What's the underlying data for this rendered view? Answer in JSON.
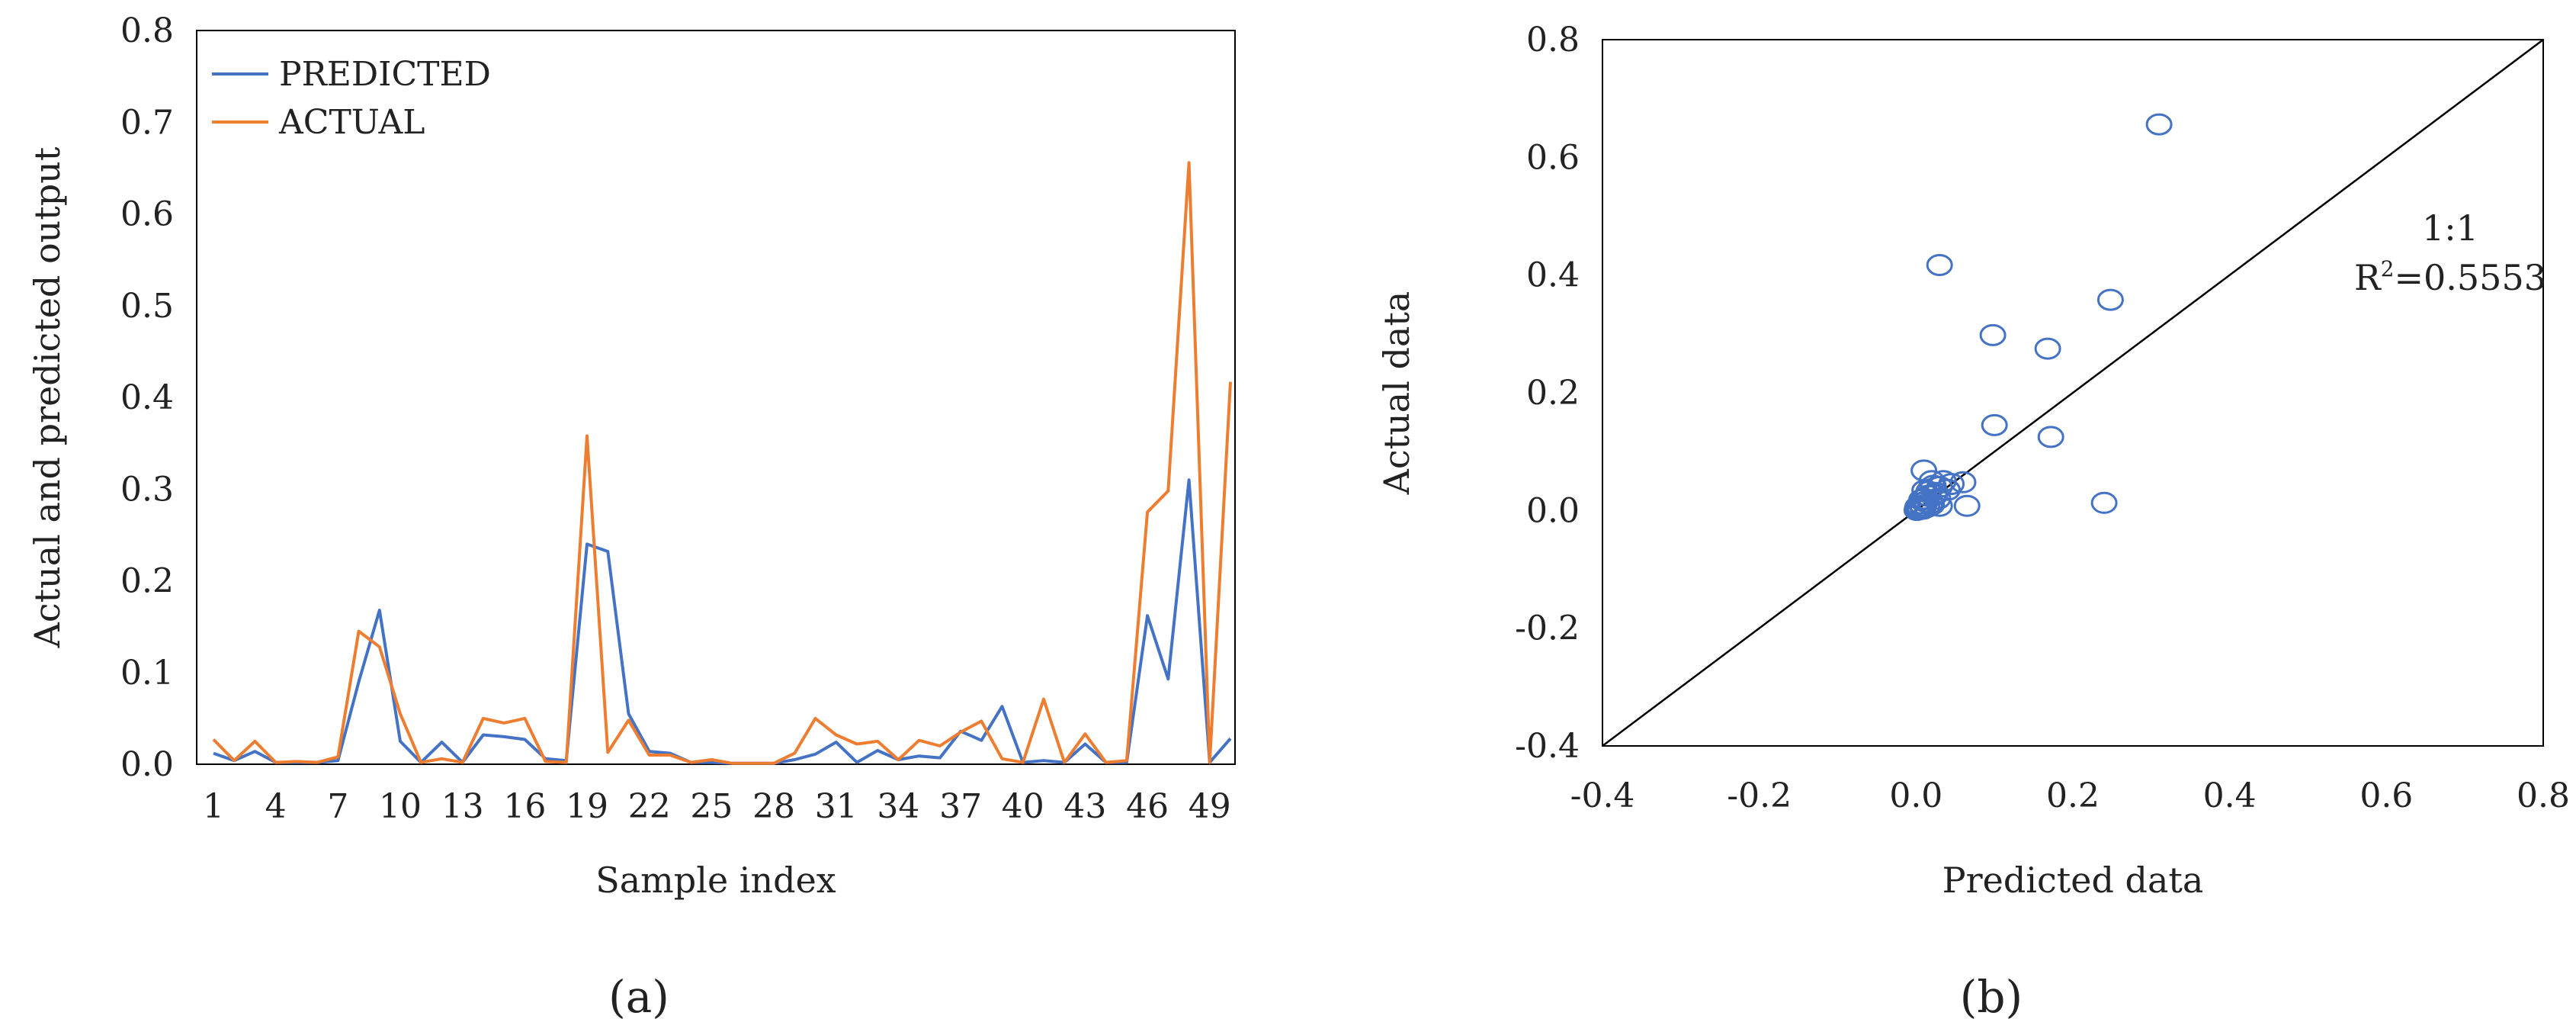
{
  "colors": {
    "predicted": "#4472C4",
    "actual": "#ED7D31",
    "axis": "#000000",
    "marker": "#4472C4"
  },
  "chart_data": [
    {
      "type": "line",
      "panel_label": "(a)",
      "title": "",
      "xlabel": "Sample index",
      "ylabel": "Actual and predicted output",
      "ylim": [
        0,
        0.8
      ],
      "xlim": [
        1,
        50
      ],
      "grid": false,
      "legend_position": "top-left",
      "x_tick_labels": [
        "1",
        "4",
        "7",
        "10",
        "13",
        "16",
        "19",
        "22",
        "25",
        "28",
        "31",
        "34",
        "37",
        "40",
        "43",
        "46",
        "49"
      ],
      "y_tick_labels": [
        "0.0",
        "0.1",
        "0.2",
        "0.3",
        "0.4",
        "0.5",
        "0.6",
        "0.7",
        "0.8"
      ],
      "x": [
        1,
        2,
        3,
        4,
        5,
        6,
        7,
        8,
        9,
        10,
        11,
        12,
        13,
        14,
        15,
        16,
        17,
        18,
        19,
        20,
        21,
        22,
        23,
        24,
        25,
        26,
        27,
        28,
        29,
        30,
        31,
        32,
        33,
        34,
        35,
        36,
        37,
        38,
        39,
        40,
        41,
        42,
        43,
        44,
        45,
        46,
        47,
        48,
        49,
        50
      ],
      "series": [
        {
          "name": "PREDICTED",
          "values": [
            0.012,
            0.004,
            0.014,
            0.002,
            0.002,
            0.002,
            0.004,
            0.09,
            0.168,
            0.025,
            0.002,
            0.024,
            0.002,
            0.032,
            0.03,
            0.027,
            0.006,
            0.004,
            0.24,
            0.232,
            0.055,
            0.014,
            0.012,
            0.002,
            0.002,
            0.001,
            0.001,
            0.001,
            0.005,
            0.011,
            0.024,
            0.002,
            0.015,
            0.005,
            0.009,
            0.007,
            0.036,
            0.026,
            0.063,
            0.002,
            0.004,
            0.002,
            0.022,
            0.002,
            0.002,
            0.162,
            0.093,
            0.31,
            0.002,
            0.028
          ]
        },
        {
          "name": "ACTUAL",
          "values": [
            0.027,
            0.004,
            0.025,
            0.002,
            0.003,
            0.002,
            0.008,
            0.145,
            0.128,
            0.055,
            0.002,
            0.006,
            0.002,
            0.05,
            0.045,
            0.05,
            0.003,
            0.002,
            0.358,
            0.013,
            0.048,
            0.01,
            0.01,
            0.002,
            0.005,
            0.001,
            0.001,
            0.001,
            0.012,
            0.05,
            0.032,
            0.022,
            0.025,
            0.005,
            0.026,
            0.02,
            0.035,
            0.047,
            0.006,
            0.002,
            0.071,
            0.002,
            0.033,
            0.002,
            0.004,
            0.275,
            0.298,
            0.656,
            0.002,
            0.417
          ]
        }
      ]
    },
    {
      "type": "scatter",
      "panel_label": "(b)",
      "title": "",
      "xlabel": "Predicted data",
      "ylabel": "Actual data",
      "xlim": [
        -0.4,
        0.8
      ],
      "ylim": [
        -0.4,
        0.8
      ],
      "grid": false,
      "x_tick_labels": [
        "-0.4",
        "-0.2",
        "0.0",
        "0.2",
        "0.4",
        "0.6",
        "0.8"
      ],
      "y_tick_labels": [
        "-0.4",
        "-0.2",
        "0.0",
        "0.2",
        "0.4",
        "0.6",
        "0.8"
      ],
      "reference_line": {
        "label": "1:1",
        "from": [
          -0.4,
          -0.4
        ],
        "to": [
          0.8,
          0.8
        ]
      },
      "annotation_ratio": "1:1",
      "annotation_r2_prefix": "R",
      "annotation_r2_sup": "2",
      "annotation_r2_value": "=0.5553",
      "points": [
        [
          0.31,
          0.656
        ],
        [
          0.03,
          0.417
        ],
        [
          0.248,
          0.358
        ],
        [
          0.098,
          0.298
        ],
        [
          0.168,
          0.275
        ],
        [
          0.1,
          0.145
        ],
        [
          0.172,
          0.125
        ],
        [
          0.24,
          0.013
        ],
        [
          0.065,
          0.008
        ],
        [
          0.06,
          0.048
        ],
        [
          0.01,
          0.068
        ],
        [
          0.02,
          0.05
        ],
        [
          0.035,
          0.05
        ],
        [
          0.045,
          0.045
        ],
        [
          0.04,
          0.035
        ],
        [
          0.03,
          0.04
        ],
        [
          0.025,
          0.03
        ],
        [
          0.015,
          0.025
        ],
        [
          0.028,
          0.02
        ],
        [
          0.012,
          0.015
        ],
        [
          0.02,
          0.01
        ],
        [
          0.008,
          0.008
        ],
        [
          0.005,
          0.005
        ],
        [
          0.004,
          0.004
        ],
        [
          0.003,
          0.003
        ],
        [
          0.002,
          0.002
        ],
        [
          0.006,
          0.012
        ],
        [
          0.01,
          0.02
        ],
        [
          0.014,
          0.006
        ],
        [
          0.03,
          0.008
        ],
        [
          0.016,
          0.032
        ],
        [
          0.022,
          0.042
        ],
        [
          0.002,
          0.006
        ],
        [
          0.004,
          0.002
        ],
        [
          0.009,
          0.003
        ],
        [
          0.001,
          0.001
        ],
        [
          0.007,
          0.018
        ],
        [
          0.018,
          0.012
        ],
        [
          0.024,
          0.026
        ],
        [
          0.011,
          0.034
        ]
      ]
    }
  ]
}
